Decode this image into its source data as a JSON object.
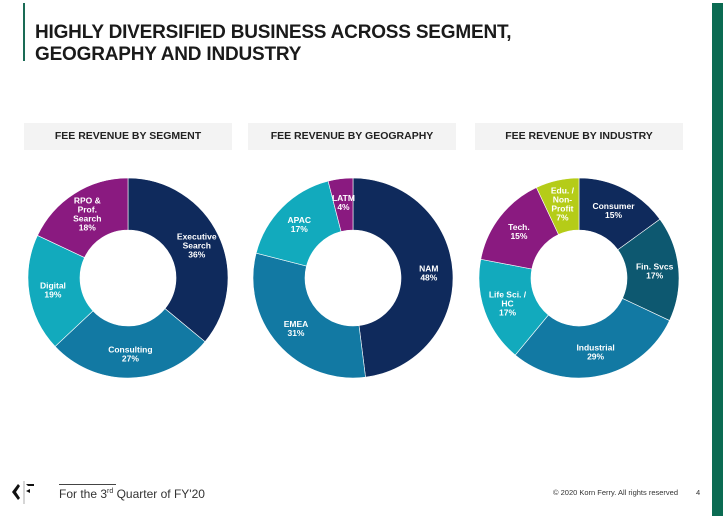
{
  "header": {
    "title_line1": "HIGHLY DIVERSIFIED BUSINESS ACROSS SEGMENT,",
    "title_line2": "GEOGRAPHY AND INDUSTRY"
  },
  "chart_data": [
    {
      "type": "pie",
      "variant": "donut",
      "title": "FEE REVENUE BY SEGMENT",
      "categories": [
        "Executive Search",
        "Consulting",
        "Digital",
        "RPO & Prof. Search"
      ],
      "display_labels": [
        [
          "Executive",
          "Search",
          "36%"
        ],
        [
          "Consulting",
          "27%"
        ],
        [
          "Digital",
          "19%"
        ],
        [
          "RPO &",
          "Prof.",
          "Search",
          "18%"
        ]
      ],
      "values": [
        36,
        27,
        19,
        18
      ],
      "unit": "%",
      "colors": [
        "#0f2a5c",
        "#1279a3",
        "#12aabd",
        "#8a1a80"
      ]
    },
    {
      "type": "pie",
      "variant": "donut",
      "title": "FEE REVENUE BY GEOGRAPHY",
      "categories": [
        "NAM",
        "EMEA",
        "APAC",
        "LATM"
      ],
      "display_labels": [
        [
          "NAM",
          "48%"
        ],
        [
          "EMEA",
          "31%"
        ],
        [
          "APAC",
          "17%"
        ],
        [
          "LATM",
          "4%"
        ]
      ],
      "values": [
        48,
        31,
        17,
        4
      ],
      "unit": "%",
      "colors": [
        "#0f2a5c",
        "#1279a3",
        "#12aabd",
        "#8a1a80"
      ]
    },
    {
      "type": "pie",
      "variant": "donut",
      "title": "FEE REVENUE BY INDUSTRY",
      "categories": [
        "Consumer",
        "Fin. Svcs",
        "Industrial",
        "Life Sci. / HC",
        "Tech.",
        "Edu. / Non-Profit"
      ],
      "display_labels": [
        [
          "Consumer",
          "15%"
        ],
        [
          "Fin. Svcs",
          "17%"
        ],
        [
          "Industrial",
          "29%"
        ],
        [
          "Life Sci. /",
          "HC",
          "17%"
        ],
        [
          "Tech.",
          "15%"
        ],
        [
          "Edu. /",
          "Non-",
          "Profit",
          "7%"
        ]
      ],
      "values": [
        15,
        17,
        29,
        17,
        15,
        7
      ],
      "unit": "%",
      "colors": [
        "#0f2a5c",
        "#0d5870",
        "#1279a3",
        "#12aabd",
        "#8a1a80",
        "#b5cc18"
      ]
    }
  ],
  "footer": {
    "note_prefix": "For the 3",
    "note_sup": "rd",
    "note_suffix": " Quarter of FY'20",
    "copyright": "© 2020 Korn Ferry. All rights reserved",
    "page_number": "4"
  }
}
